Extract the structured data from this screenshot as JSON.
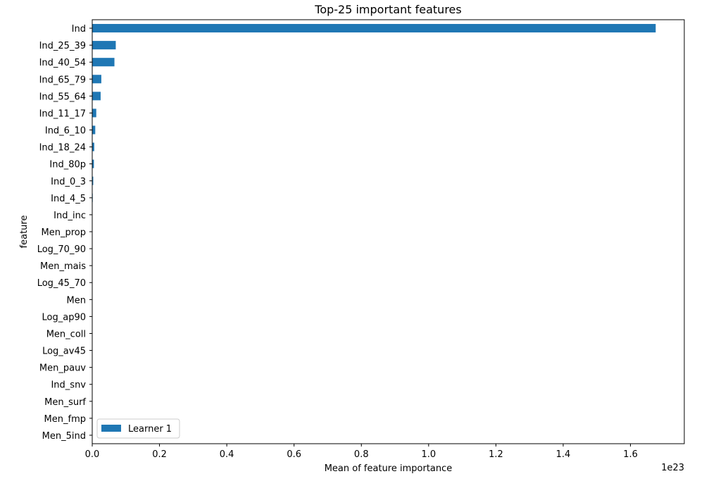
{
  "chart_data": {
    "type": "bar",
    "orientation": "horizontal",
    "title": "Top-25 important features",
    "xlabel": "Mean of feature importance",
    "ylabel": "feature",
    "x_offset_text": "1e23",
    "x_scale_power": 23,
    "xlim": [
      0,
      1.76
    ],
    "xticks": [
      0.0,
      0.2,
      0.4,
      0.6,
      0.8,
      1.0,
      1.2,
      1.4,
      1.6
    ],
    "xtick_labels": [
      "0.0",
      "0.2",
      "0.4",
      "0.6",
      "0.8",
      "1.0",
      "1.2",
      "1.4",
      "1.6"
    ],
    "grid": false,
    "legend_position": "lower-left",
    "categories": [
      "Ind",
      "Ind_25_39",
      "Ind_40_54",
      "Ind_65_79",
      "Ind_55_64",
      "Ind_11_17",
      "Ind_6_10",
      "Ind_18_24",
      "Ind_80p",
      "Ind_0_3",
      "Ind_4_5",
      "Ind_inc",
      "Men_prop",
      "Log_70_90",
      "Men_mais",
      "Log_45_70",
      "Men",
      "Log_ap90",
      "Men_coll",
      "Log_av45",
      "Men_pauv",
      "Ind_snv",
      "Men_surf",
      "Men_fmp",
      "Men_5ind"
    ],
    "series": [
      {
        "name": "Learner 1",
        "color": "#1f77b4",
        "values": [
          1.675,
          0.07,
          0.066,
          0.027,
          0.025,
          0.012,
          0.009,
          0.006,
          0.005,
          0.003,
          0.0015,
          0.001,
          0.0008,
          0.0006,
          0.0005,
          0.0004,
          0.0003,
          0.0003,
          0.0002,
          0.0002,
          0.0001,
          0.0001,
          0.0001,
          0.0001,
          0.0001
        ]
      }
    ]
  }
}
